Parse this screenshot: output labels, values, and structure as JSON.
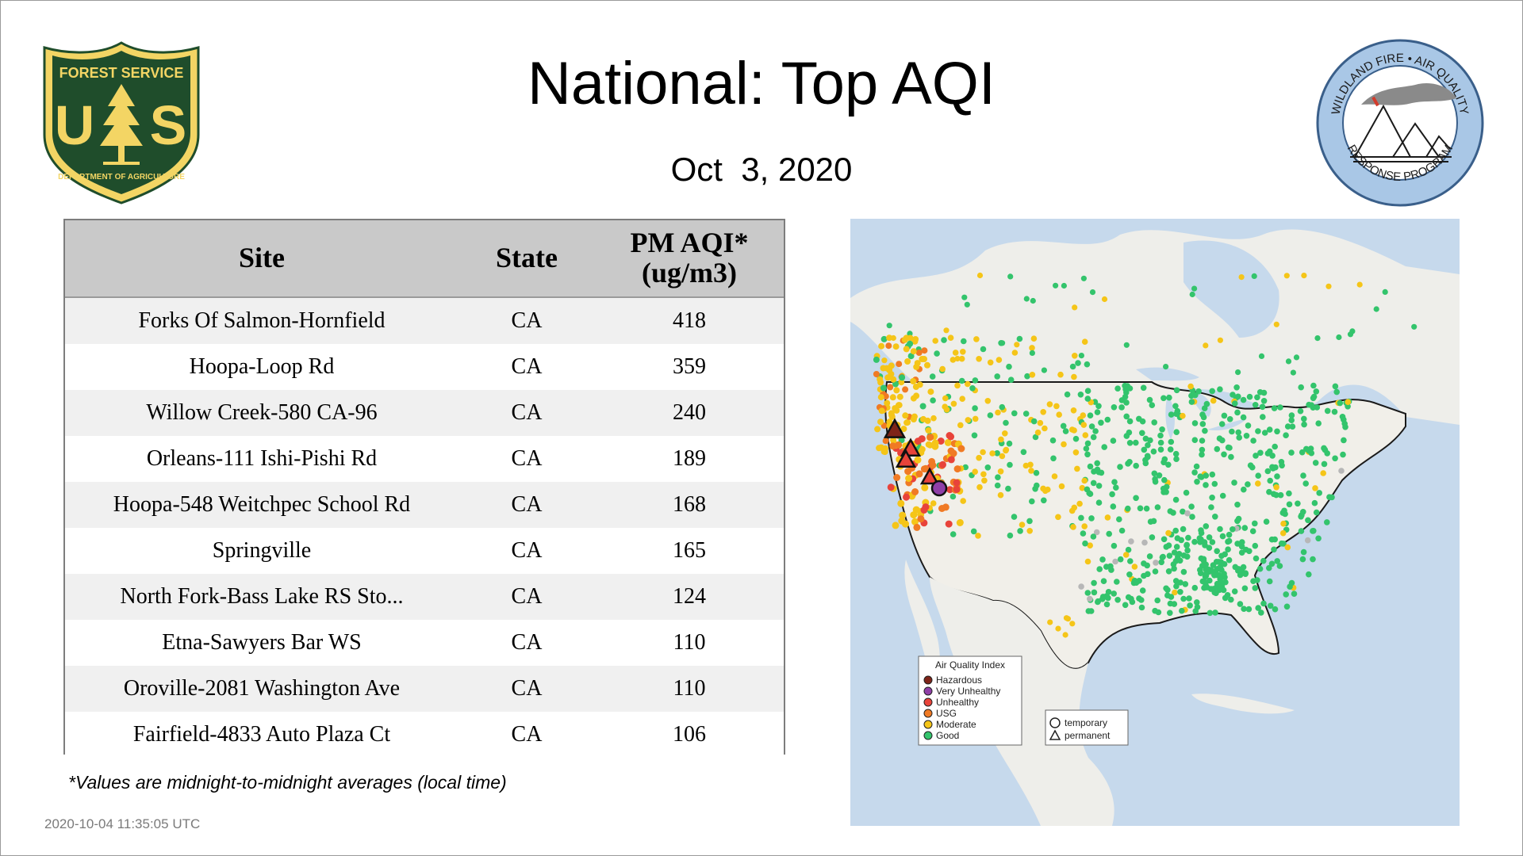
{
  "header": {
    "title": "National: Top AQI",
    "date": "Oct  3, 2020"
  },
  "logos": {
    "forest_service": {
      "icon": "usda-forest-service-shield-icon",
      "top_text": "FOREST SERVICE",
      "bottom_text": "DEPARTMENT OF AGRICULTURE",
      "letters": "US",
      "colors": {
        "green": "#1f4d2b",
        "gold": "#f3d564"
      }
    },
    "wfaqrp": {
      "icon": "wildland-fire-air-quality-seal-icon",
      "top_text": "WILDLAND FIRE • AIR QUALITY",
      "bottom_text": "RESPONSE PROGRAM",
      "colors": {
        "ring": "#a9c7e6",
        "border": "#3a5f8a"
      }
    }
  },
  "table": {
    "columns": [
      "Site",
      "State",
      "PM AQI*",
      "(ug/m3)"
    ],
    "rows": [
      {
        "site": "Forks Of Salmon-Hornfield",
        "state": "CA",
        "value": "418"
      },
      {
        "site": "Hoopa-Loop Rd",
        "state": "CA",
        "value": "359"
      },
      {
        "site": "Willow Creek-580 CA-96",
        "state": "CA",
        "value": "240"
      },
      {
        "site": "Orleans-111 Ishi-Pishi Rd",
        "state": "CA",
        "value": "189"
      },
      {
        "site": "Hoopa-548 Weitchpec School Rd",
        "state": "CA",
        "value": "168"
      },
      {
        "site": "Springville",
        "state": "CA",
        "value": "165"
      },
      {
        "site": "North Fork-Bass Lake RS Sto...",
        "state": "CA",
        "value": "124"
      },
      {
        "site": "Etna-Sawyers Bar WS",
        "state": "CA",
        "value": "110"
      },
      {
        "site": "Oroville-2081 Washington Ave",
        "state": "CA",
        "value": "110"
      },
      {
        "site": "Fairfield-4833 Auto Plaza Ct",
        "state": "CA",
        "value": "106"
      }
    ]
  },
  "footnote": "*Values are midnight-to-midnight averages (local time)",
  "timestamp": "2020-10-04 11:35:05 UTC",
  "map": {
    "legend": {
      "title": "Air Quality Index",
      "items": [
        {
          "label": "Hazardous",
          "color": "#7e2418"
        },
        {
          "label": "Very Unhealthy",
          "color": "#8f3fa7"
        },
        {
          "label": "Unhealthy",
          "color": "#e8433a"
        },
        {
          "label": "USG",
          "color": "#f07a24"
        },
        {
          "label": "Moderate",
          "color": "#f5c518"
        },
        {
          "label": "Good",
          "color": "#33c46c"
        }
      ]
    },
    "shape_legend": {
      "temporary": "temporary",
      "permanent": "permanent"
    },
    "colors": {
      "water": "#c6d9ec",
      "land": "#f1efe9",
      "canada": "#eeeeea",
      "border": "#1a1a1a",
      "good": "#33c46c",
      "moderate": "#f5c518",
      "usg": "#f07a24",
      "unhealthy": "#e8433a",
      "very_unhealthy": "#8f3fa7",
      "hazardous": "#7e2418",
      "no_data": "#b7b7b7"
    }
  }
}
